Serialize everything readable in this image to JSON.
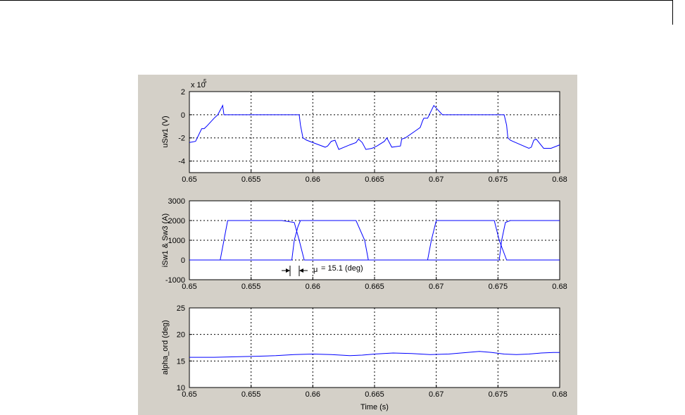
{
  "colors": {
    "figure_background": "#d4d0c8",
    "axes_background": "#ffffff",
    "trace": "#0000ff",
    "grid": "#000000"
  },
  "chart_data": [
    {
      "type": "line",
      "ylabel": "uSw1 (V)",
      "xlabel": "",
      "exponent_label": "x 10",
      "exponent_power": "5",
      "xlim": [
        0.65,
        0.68
      ],
      "ylim": [
        -5,
        2
      ],
      "grid": true,
      "xticks": [
        "0.65",
        "0.655",
        "0.66",
        "0.665",
        "0.67",
        "0.675",
        "0.68"
      ],
      "yticks": [
        "2",
        "0",
        "-2",
        "-4"
      ],
      "ytick_values": [
        2,
        0,
        -2,
        -4
      ],
      "series": [
        {
          "x": [
            0.65,
            0.6505,
            0.651,
            0.6512,
            0.6514,
            0.652,
            0.6523,
            0.6526,
            0.6527,
            0.6528,
            0.6531,
            0.6537,
            0.6545,
            0.6555,
            0.6565,
            0.6575,
            0.6585,
            0.6589,
            0.659,
            0.6592,
            0.6595,
            0.6605,
            0.661,
            0.6612,
            0.6615,
            0.6618,
            0.6621,
            0.663,
            0.6635,
            0.6637,
            0.664,
            0.6643,
            0.6648,
            0.6652,
            0.6658,
            0.666,
            0.6664,
            0.6671,
            0.6672,
            0.6675,
            0.6683,
            0.6687,
            0.6689,
            0.669,
            0.6693,
            0.6698,
            0.6705,
            0.6715,
            0.6725,
            0.6735,
            0.6745,
            0.6755,
            0.6757,
            0.6758,
            0.676,
            0.6762,
            0.6775,
            0.6777,
            0.6779,
            0.6781,
            0.6787,
            0.6793,
            0.68
          ],
          "y": [
            -2.4,
            -2.3,
            -1.2,
            -1.2,
            -1.0,
            -0.3,
            0.0,
            0.6,
            0.8,
            0.0,
            0.0,
            0.0,
            0.0,
            0.0,
            0.0,
            0.0,
            0.0,
            0.0,
            -0.9,
            -2.0,
            -2.2,
            -2.6,
            -2.8,
            -2.7,
            -2.3,
            -2.2,
            -3.0,
            -2.6,
            -2.4,
            -2.1,
            -2.4,
            -3.0,
            -2.9,
            -2.7,
            -2.3,
            -2.0,
            -2.8,
            -2.7,
            -2.1,
            -2.0,
            -1.4,
            -1.1,
            -0.5,
            -0.3,
            -0.3,
            0.8,
            0.0,
            0.0,
            0.0,
            0.0,
            0.0,
            0.0,
            -0.9,
            -2.0,
            -2.2,
            -2.3,
            -2.9,
            -2.8,
            -2.2,
            -2.1,
            -2.9,
            -2.9,
            -2.6
          ]
        }
      ]
    },
    {
      "type": "line",
      "ylabel": "iSw1 & Sw3 (A)",
      "xlabel": "",
      "xlim": [
        0.65,
        0.68
      ],
      "ylim": [
        -1000,
        3000
      ],
      "grid": true,
      "xticks": [
        "0.65",
        "0.655",
        "0.66",
        "0.665",
        "0.67",
        "0.675",
        "0.68"
      ],
      "yticks": [
        "3000",
        "2000",
        "1000",
        "0",
        "-1000"
      ],
      "ytick_values": [
        3000,
        2000,
        1000,
        0,
        -1000
      ],
      "annotation": {
        "text_symbol": "μ",
        "text_value": "= 15.1 (deg)",
        "x_start": 0.6583,
        "x_end": 0.659
      },
      "series": [
        {
          "x": [
            0.65,
            0.6525,
            0.6528,
            0.6531,
            0.6535,
            0.6545,
            0.6575,
            0.6585,
            0.6589,
            0.6593,
            0.6595,
            0.6607,
            0.6635,
            0.6645,
            0.6693,
            0.6696,
            0.67,
            0.6705,
            0.6735,
            0.6747,
            0.6751,
            0.6757,
            0.676,
            0.68
          ],
          "y": [
            0,
            0,
            1000,
            2000,
            2000,
            2000,
            2000,
            1900,
            1000,
            0,
            0,
            0,
            0,
            0,
            0,
            1000,
            2000,
            2000,
            2000,
            2000,
            1000,
            0,
            0,
            0
          ]
        },
        {
          "x": [
            0.65,
            0.6583,
            0.6585,
            0.6588,
            0.659,
            0.6595,
            0.6635,
            0.6642,
            0.6645,
            0.669,
            0.6751,
            0.6753,
            0.6756,
            0.676,
            0.68
          ],
          "y": [
            0,
            0,
            1000,
            1700,
            2000,
            2000,
            2000,
            1000,
            0,
            0,
            0,
            1000,
            1900,
            2000,
            2000
          ]
        }
      ]
    },
    {
      "type": "line",
      "ylabel": "alpha_ord (deg)",
      "xlabel": "Time (s)",
      "xlim": [
        0.65,
        0.68
      ],
      "ylim": [
        10,
        25
      ],
      "grid": true,
      "xticks": [
        "0.65",
        "0.655",
        "0.66",
        "0.665",
        "0.67",
        "0.675",
        "0.68"
      ],
      "yticks": [
        "25",
        "20",
        "15",
        "10"
      ],
      "ytick_values": [
        25,
        20,
        15,
        10
      ],
      "series": [
        {
          "x": [
            0.65,
            0.652,
            0.654,
            0.6555,
            0.657,
            0.6585,
            0.66,
            0.6615,
            0.663,
            0.664,
            0.665,
            0.6665,
            0.668,
            0.6695,
            0.671,
            0.6725,
            0.6735,
            0.6745,
            0.6755,
            0.6765,
            0.6775,
            0.6785,
            0.6795,
            0.68
          ],
          "y": [
            15.7,
            15.7,
            15.8,
            15.9,
            16.0,
            16.2,
            16.3,
            16.2,
            16.0,
            16.1,
            16.3,
            16.5,
            16.4,
            16.2,
            16.3,
            16.6,
            16.8,
            16.6,
            16.3,
            16.2,
            16.3,
            16.5,
            16.6,
            16.6
          ]
        }
      ]
    }
  ]
}
